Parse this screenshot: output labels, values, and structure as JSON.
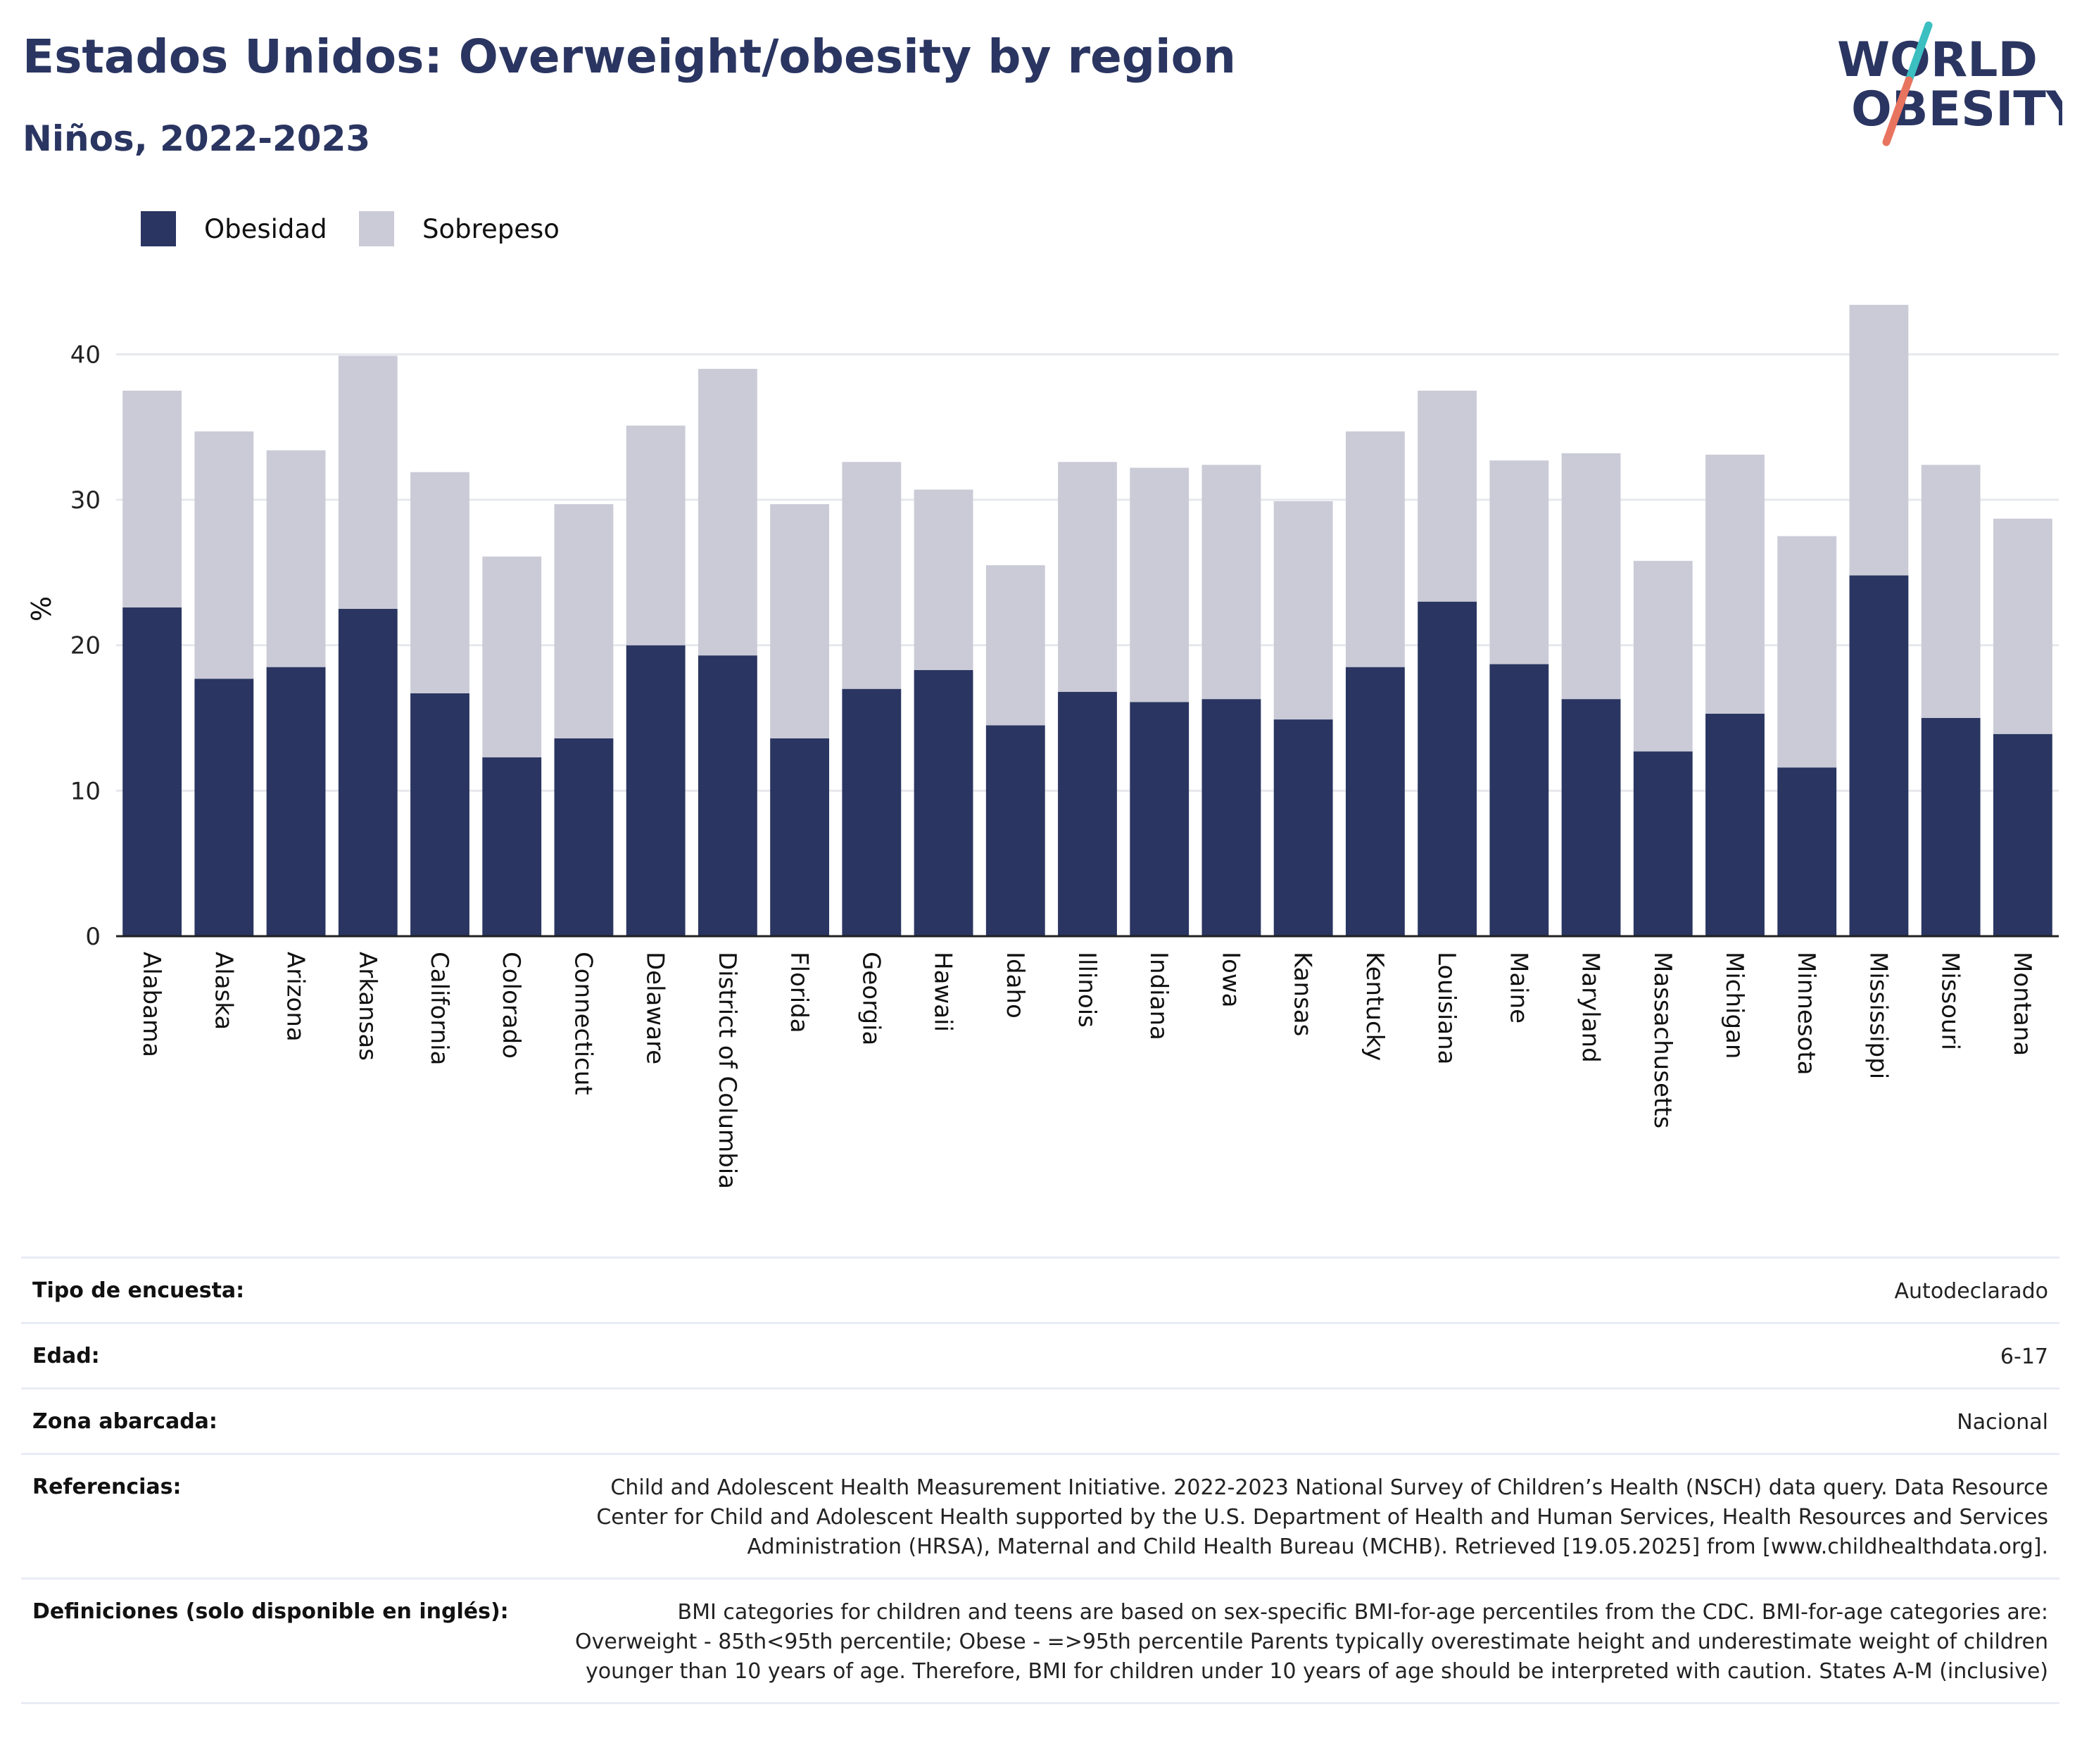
{
  "header": {
    "title": "Estados Unidos: Overweight/obesity by region",
    "subtitle": "Niños, 2022-2023"
  },
  "logo": {
    "line1": "WORLD",
    "line2": "OBESITY"
  },
  "colors": {
    "obesity": "#2a3561",
    "overweight": "#cacbd7",
    "title": "#2a3561",
    "logo_teal": "#3bbfc0",
    "logo_red": "#e8745f"
  },
  "legend": [
    {
      "label": "Obesidad",
      "color": "#2a3561"
    },
    {
      "label": "Sobrepeso",
      "color": "#cacbd7"
    }
  ],
  "chart_data": {
    "type": "bar",
    "stacked": true,
    "ylabel": "%",
    "ylim": [
      0,
      45
    ],
    "yticks": [
      0,
      10,
      20,
      30,
      40
    ],
    "grid": true,
    "legend_position": "top-left",
    "categories": [
      "Alabama",
      "Alaska",
      "Arizona",
      "Arkansas",
      "California",
      "Colorado",
      "Connecticut",
      "Delaware",
      "District of Columbia",
      "Florida",
      "Georgia",
      "Hawaii",
      "Idaho",
      "Illinois",
      "Indiana",
      "Iowa",
      "Kansas",
      "Kentucky",
      "Louisiana",
      "Maine",
      "Maryland",
      "Massachusetts",
      "Michigan",
      "Minnesota",
      "Mississippi",
      "Missouri",
      "Montana"
    ],
    "series": [
      {
        "name": "Obesidad",
        "values": [
          22.6,
          17.7,
          18.5,
          22.5,
          16.7,
          12.3,
          13.6,
          20.0,
          19.3,
          13.6,
          17.0,
          18.3,
          14.5,
          16.8,
          16.1,
          16.3,
          14.9,
          18.5,
          23.0,
          18.7,
          16.3,
          12.7,
          15.3,
          11.6,
          24.8,
          15.0,
          13.9
        ]
      },
      {
        "name": "Sobrepeso",
        "values": [
          14.9,
          17.0,
          14.9,
          17.4,
          15.2,
          13.8,
          16.1,
          15.1,
          19.7,
          16.1,
          15.6,
          12.4,
          11.0,
          15.8,
          16.1,
          16.1,
          15.0,
          16.2,
          14.5,
          14.0,
          16.9,
          13.1,
          17.8,
          15.9,
          18.6,
          17.4,
          14.8
        ]
      }
    ]
  },
  "metadata": [
    {
      "key": "Tipo de encuesta:",
      "value": "Autodeclarado"
    },
    {
      "key": "Edad:",
      "value": "6-17"
    },
    {
      "key": "Zona abarcada:",
      "value": "Nacional"
    },
    {
      "key": "Referencias:",
      "value": "Child and Adolescent Health Measurement Initiative. 2022-2023 National Survey of Children’s Health (NSCH) data query. Data Resource Center for Child and Adolescent Health supported by the U.S. Department of Health and Human Services, Health Resources and Services Administration (HRSA), Maternal and Child Health Bureau (MCHB). Retrieved [19.05.2025] from [www.childhealthdata.org]."
    },
    {
      "key": "Definiciones (solo disponible en inglés):",
      "value": "BMI categories for children and teens are based on sex-specific BMI-for-age percentiles from the CDC. BMI-for-age categories are: Overweight - 85th<95th percentile; Obese - =>95th percentile Parents typically overestimate height and underestimate weight of children younger than 10 years of age. Therefore, BMI for children under 10 years of age should be interpreted with caution. States A-M (inclusive)"
    }
  ]
}
